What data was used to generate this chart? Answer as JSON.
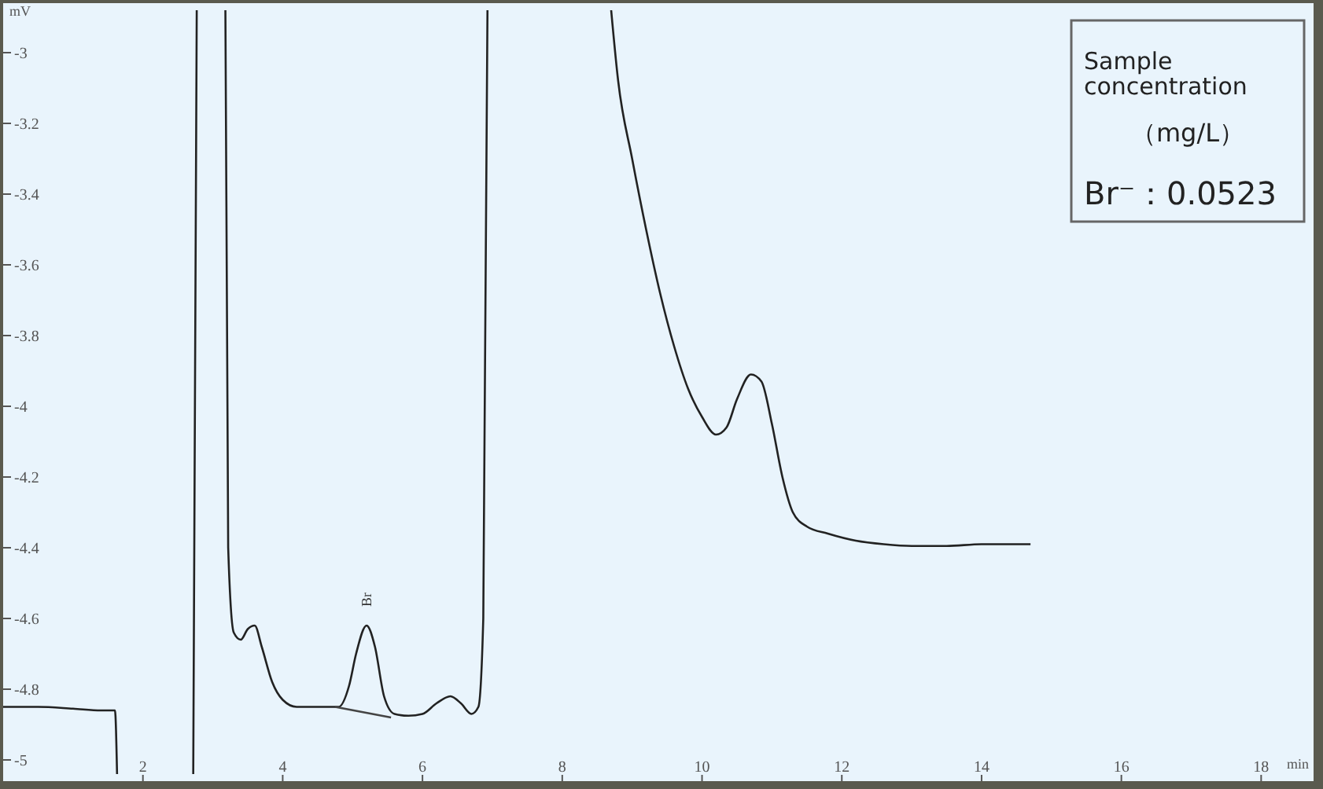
{
  "chart_data": {
    "type": "line",
    "xlabel": "min",
    "ylabel": "mV",
    "xlim": [
      0,
      18.75
    ],
    "ylim": [
      -5.06,
      -2.86
    ],
    "xticks": [
      2,
      4,
      6,
      8,
      10,
      12,
      14,
      16,
      18
    ],
    "yticks": [
      -3,
      -3.2,
      -3.4,
      -3.6,
      -3.8,
      -4,
      -4.2,
      -4.4,
      -4.6,
      -4.8,
      -5
    ],
    "grid": false,
    "marker": "none",
    "line_style": "solid",
    "series": [
      {
        "color": "#222222",
        "x": [
          0,
          0.5,
          1,
          1.4,
          1.6,
          1.63,
          2.2,
          2.72,
          2.77,
          3.0,
          3.18,
          3.22,
          3.3,
          3.4,
          3.5,
          3.6,
          3.7,
          3.85,
          4.0,
          4.2,
          4.5,
          4.8,
          4.95,
          5.05,
          5.2,
          5.32,
          5.45,
          5.6,
          5.8,
          6.0,
          6.2,
          6.4,
          6.55,
          6.7,
          6.8,
          6.87,
          6.93,
          8.0,
          8.7,
          8.8,
          9.0,
          9.2,
          9.4,
          9.6,
          9.8,
          10.0,
          10.2,
          10.35,
          10.5,
          10.7,
          10.85,
          11.0,
          11.15,
          11.3,
          11.5,
          11.8,
          12.2,
          12.6,
          13.0,
          13.5,
          14.0,
          14.7
        ],
        "values": [
          -4.85,
          -4.85,
          -4.855,
          -4.86,
          -4.86,
          -5.04,
          null,
          -5.04,
          -2.88,
          null,
          -2.88,
          -4.4,
          -4.64,
          -4.66,
          -4.63,
          -4.62,
          -4.68,
          -4.78,
          -4.83,
          -4.85,
          -4.85,
          -4.85,
          -4.79,
          -4.7,
          -4.62,
          -4.68,
          -4.82,
          -4.87,
          -4.875,
          -4.87,
          -4.84,
          -4.82,
          -4.84,
          -4.87,
          -4.85,
          -4.6,
          -2.88,
          null,
          -2.88,
          -3.08,
          -3.3,
          -3.5,
          -3.68,
          -3.83,
          -3.95,
          -4.03,
          -4.08,
          -4.06,
          -3.98,
          -3.91,
          -3.93,
          -4.05,
          -4.2,
          -4.3,
          -4.34,
          -4.36,
          -4.38,
          -4.39,
          -4.395,
          -4.395,
          -4.39,
          -4.39
        ]
      },
      {
        "color": "#444444",
        "x": [
          4.75,
          5.55
        ],
        "values": [
          -4.85,
          -4.88
        ]
      }
    ],
    "annotations": [
      {
        "text": "Br",
        "x": 5.2,
        "y": -4.62
      },
      "Sample concentration",
      "（mg/L）",
      "Br⁻：0.0523"
    ]
  }
}
